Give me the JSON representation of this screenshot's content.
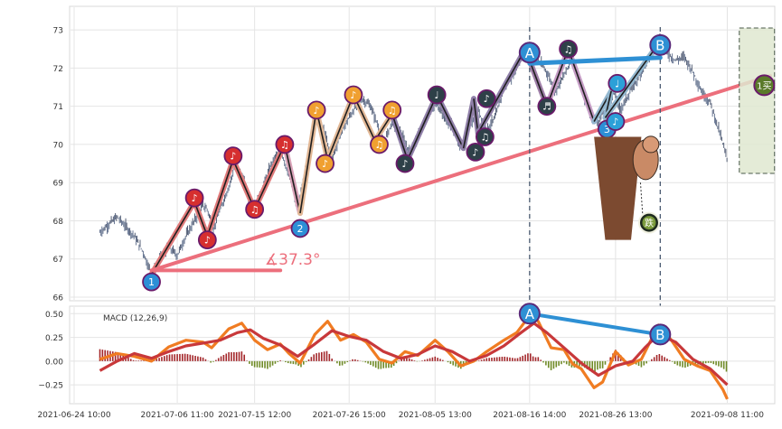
{
  "chart_data": [
    {
      "type": "candlestick",
      "panel": "price",
      "ylim": [
        66,
        73.5
      ],
      "y_ticks": [
        "66",
        "67",
        "68",
        "69",
        "70",
        "71",
        "72",
        "73"
      ],
      "x_ticks": [
        "2021-06-24 10:00",
        "2021-07-06 11:00",
        "2021-07-15 12:00",
        "2021-07-26 15:00",
        "2021-08-05 13:00",
        "2021-08-16 14:00",
        "2021-08-26 13:00",
        "2021-09-08 11:00"
      ],
      "xlim_days": [
        0,
        81
      ],
      "x_tick_days": [
        0,
        12,
        21,
        32,
        42,
        53,
        63,
        76
      ],
      "grid": true,
      "close_path": [
        [
          3,
          67.7
        ],
        [
          5,
          68.1
        ],
        [
          7,
          67.6
        ],
        [
          8,
          67.2
        ],
        [
          9,
          66.6
        ],
        [
          10,
          67.0
        ],
        [
          11,
          67.3
        ],
        [
          12,
          67.1
        ],
        [
          13,
          67.6
        ],
        [
          14,
          68.0
        ],
        [
          15,
          68.4
        ],
        [
          15.5,
          68.3
        ],
        [
          16.2,
          67.8
        ],
        [
          17,
          68.3
        ],
        [
          18,
          68.9
        ],
        [
          18.8,
          69.5
        ],
        [
          19.5,
          69.2
        ],
        [
          20.3,
          68.6
        ],
        [
          21,
          68.3
        ],
        [
          22,
          68.9
        ],
        [
          23,
          69.5
        ],
        [
          24,
          69.9
        ],
        [
          25,
          69.2
        ],
        [
          26,
          68.3
        ],
        [
          27,
          69.4
        ],
        [
          28,
          70.7
        ],
        [
          29,
          70.4
        ],
        [
          30,
          69.6
        ],
        [
          31,
          70.3
        ],
        [
          32.5,
          70.9
        ],
        [
          33.5,
          71.2
        ],
        [
          34.5,
          71.0
        ],
        [
          35.5,
          70.4
        ],
        [
          36,
          70.0
        ],
        [
          37,
          70.6
        ],
        [
          38,
          70.3
        ],
        [
          39,
          69.8
        ],
        [
          40,
          70.2
        ],
        [
          41,
          70.7
        ],
        [
          42.2,
          71.1
        ],
        [
          43,
          70.7
        ],
        [
          44,
          70.5
        ],
        [
          45,
          69.9
        ],
        [
          46,
          70.5
        ],
        [
          47,
          70.9
        ],
        [
          48,
          70.4
        ],
        [
          49,
          70.7
        ],
        [
          50,
          71.5
        ],
        [
          51,
          71.8
        ],
        [
          52,
          72.3
        ],
        [
          53,
          72.5
        ],
        [
          54,
          72.2
        ],
        [
          55,
          71.9
        ],
        [
          56,
          71.4
        ],
        [
          57,
          71.8
        ],
        [
          58,
          72.3
        ],
        [
          59,
          71.5
        ],
        [
          60,
          70.8
        ],
        [
          61,
          70.6
        ],
        [
          62,
          71.0
        ],
        [
          62.8,
          71.4
        ],
        [
          63.5,
          70.9
        ],
        [
          64.5,
          71.3
        ],
        [
          65.5,
          71.7
        ],
        [
          66.5,
          72.1
        ],
        [
          67.5,
          72.5
        ],
        [
          68.2,
          72.8
        ],
        [
          69,
          72.4
        ],
        [
          70,
          72.2
        ],
        [
          71,
          72.3
        ],
        [
          72,
          71.9
        ],
        [
          73,
          71.4
        ],
        [
          74,
          71.1
        ],
        [
          75,
          70.4
        ],
        [
          76,
          69.6
        ]
      ],
      "zigzag": [
        [
          9,
          66.6
        ],
        [
          14,
          68.5
        ],
        [
          15.5,
          67.6
        ],
        [
          18.5,
          69.6
        ],
        [
          21,
          68.3
        ],
        [
          24.5,
          70.0
        ],
        [
          26.3,
          68.2
        ],
        [
          28.2,
          70.9
        ],
        [
          29.5,
          69.6
        ],
        [
          32.5,
          71.3
        ],
        [
          35,
          70.1
        ],
        [
          37,
          70.8
        ],
        [
          38.8,
          69.6
        ],
        [
          42.2,
          71.3
        ],
        [
          45.3,
          69.9
        ],
        [
          46.5,
          71.2
        ],
        [
          47,
          70.3
        ],
        [
          52.5,
          72.5
        ],
        [
          55,
          71.0
        ],
        [
          57.5,
          72.5
        ],
        [
          60.5,
          70.6
        ],
        [
          62.5,
          71.4
        ],
        [
          61.8,
          70.7
        ],
        [
          68.2,
          72.7
        ]
      ],
      "markers": [
        {
          "label": "1",
          "x": 9,
          "y": 66.4,
          "color": "#2c8fd6"
        },
        {
          "label": "♪",
          "x": 14,
          "y": 68.6,
          "color": "#d62f2f"
        },
        {
          "label": "♪",
          "x": 15.5,
          "y": 67.5,
          "color": "#d62f2f"
        },
        {
          "label": "♪",
          "x": 18.5,
          "y": 69.7,
          "color": "#d62f2f"
        },
        {
          "label": "♫",
          "x": 21,
          "y": 68.3,
          "color": "#d62f2f"
        },
        {
          "label": "♫",
          "x": 24.5,
          "y": 70.0,
          "color": "#d62f2f"
        },
        {
          "label": "2",
          "x": 26.3,
          "y": 67.8,
          "color": "#2c8fd6"
        },
        {
          "label": "♪",
          "x": 28.2,
          "y": 70.9,
          "color": "#f0a030"
        },
        {
          "label": "♪",
          "x": 29.2,
          "y": 69.5,
          "color": "#f0a030"
        },
        {
          "label": "♪",
          "x": 32.5,
          "y": 71.3,
          "color": "#f0a030"
        },
        {
          "label": "♫",
          "x": 35.5,
          "y": 70.0,
          "color": "#f0a030"
        },
        {
          "label": "♫",
          "x": 37,
          "y": 70.9,
          "color": "#f0a030"
        },
        {
          "label": "♪",
          "x": 38.5,
          "y": 69.5,
          "color": "#2e4048"
        },
        {
          "label": "♩",
          "x": 42.2,
          "y": 71.3,
          "color": "#2e4048"
        },
        {
          "label": "♪",
          "x": 46.7,
          "y": 69.8,
          "color": "#2e4048"
        },
        {
          "label": "♫",
          "x": 47.8,
          "y": 70.2,
          "color": "#2e4048"
        },
        {
          "label": "♪",
          "x": 48,
          "y": 71.2,
          "color": "#2e4048"
        },
        {
          "label": "♫",
          "x": 57.5,
          "y": 72.5,
          "color": "#2e4048"
        },
        {
          "label": "♬",
          "x": 55,
          "y": 71.0,
          "color": "#2e4048"
        },
        {
          "label": "3",
          "x": 62,
          "y": 70.4,
          "color": "#2c8fd6"
        },
        {
          "label": "♪",
          "x": 63,
          "y": 70.6,
          "color": "#2ca0d8"
        },
        {
          "label": "♩",
          "x": 63.2,
          "y": 71.6,
          "color": "#2ca0d8"
        }
      ],
      "trendline": {
        "from": [
          9,
          66.7
        ],
        "to": [
          81,
          71.8
        ],
        "color": "#ec6f7c"
      },
      "angle_baseline": {
        "from": [
          9,
          66.7
        ],
        "to": [
          24,
          66.7
        ]
      },
      "angle_label": "∡37.3°",
      "divergence_line": {
        "label_a": "A",
        "label_b": "B",
        "from": [
          53,
          72.5
        ],
        "to": [
          68.2,
          72.7
        ],
        "color": "#2e90d4"
      },
      "divergence_vlines_days": [
        53,
        68.2
      ],
      "box_label": "1买",
      "icon_label": "跌",
      "annotation_days": [
        60,
        81
      ]
    },
    {
      "type": "line",
      "panel": "macd",
      "title": "MACD (12,26,9)",
      "ylim": [
        -0.42,
        0.56
      ],
      "y_ticks": [
        "−0.25",
        "0.00",
        "0.25",
        "0.50"
      ],
      "grid": true,
      "series": [
        {
          "key": "dif",
          "color": "#f07c22",
          "values_days": [
            [
              3,
              0.02
            ],
            [
              5,
              0.08
            ],
            [
              7,
              0.05
            ],
            [
              9,
              0.0
            ],
            [
              11,
              0.15
            ],
            [
              13,
              0.22
            ],
            [
              15,
              0.2
            ],
            [
              16,
              0.14
            ],
            [
              18,
              0.34
            ],
            [
              19.5,
              0.4
            ],
            [
              21,
              0.22
            ],
            [
              22.5,
              0.12
            ],
            [
              24,
              0.18
            ],
            [
              25,
              0.08
            ],
            [
              26.3,
              -0.02
            ],
            [
              28,
              0.28
            ],
            [
              29.5,
              0.42
            ],
            [
              31,
              0.22
            ],
            [
              32.5,
              0.28
            ],
            [
              34,
              0.2
            ],
            [
              35.5,
              0.02
            ],
            [
              37,
              -0.02
            ],
            [
              38.5,
              0.1
            ],
            [
              40,
              0.06
            ],
            [
              42,
              0.22
            ],
            [
              43.5,
              0.1
            ],
            [
              45,
              -0.05
            ],
            [
              46.5,
              0.0
            ],
            [
              48,
              0.1
            ],
            [
              50,
              0.22
            ],
            [
              51.5,
              0.3
            ],
            [
              53,
              0.48
            ],
            [
              54,
              0.42
            ],
            [
              55.5,
              0.14
            ],
            [
              57,
              0.12
            ],
            [
              58,
              -0.03
            ],
            [
              59,
              -0.08
            ],
            [
              60.5,
              -0.28
            ],
            [
              61.5,
              -0.22
            ],
            [
              63,
              0.1
            ],
            [
              64.5,
              -0.04
            ],
            [
              66,
              0.02
            ],
            [
              68,
              0.38
            ],
            [
              69.5,
              0.22
            ],
            [
              71,
              0.02
            ],
            [
              72.5,
              -0.05
            ],
            [
              74,
              -0.1
            ],
            [
              75.5,
              -0.3
            ],
            [
              76,
              -0.4
            ]
          ]
        },
        {
          "key": "dea",
          "color": "#c8383a",
          "values_days": [
            [
              3,
              -0.1
            ],
            [
              5,
              0.0
            ],
            [
              7,
              0.08
            ],
            [
              9,
              0.03
            ],
            [
              11,
              0.1
            ],
            [
              13,
              0.16
            ],
            [
              15,
              0.19
            ],
            [
              17,
              0.22
            ],
            [
              19,
              0.3
            ],
            [
              20.5,
              0.33
            ],
            [
              22,
              0.24
            ],
            [
              24,
              0.17
            ],
            [
              26,
              0.05
            ],
            [
              28,
              0.18
            ],
            [
              30,
              0.32
            ],
            [
              32,
              0.26
            ],
            [
              34,
              0.22
            ],
            [
              36,
              0.1
            ],
            [
              38,
              0.03
            ],
            [
              40,
              0.07
            ],
            [
              42,
              0.16
            ],
            [
              44,
              0.1
            ],
            [
              46,
              0.0
            ],
            [
              48,
              0.06
            ],
            [
              50,
              0.16
            ],
            [
              52,
              0.3
            ],
            [
              53.5,
              0.4
            ],
            [
              55,
              0.3
            ],
            [
              57,
              0.14
            ],
            [
              59,
              -0.02
            ],
            [
              61,
              -0.15
            ],
            [
              63,
              -0.05
            ],
            [
              65,
              0.0
            ],
            [
              66.5,
              0.15
            ],
            [
              68,
              0.28
            ],
            [
              70,
              0.2
            ],
            [
              72,
              0.02
            ],
            [
              74,
              -0.08
            ],
            [
              76,
              -0.25
            ]
          ]
        }
      ],
      "markers": [
        {
          "label": "A",
          "x": 53,
          "y": 0.5
        },
        {
          "label": "B",
          "x": 68.2,
          "y": 0.28
        }
      ]
    }
  ]
}
